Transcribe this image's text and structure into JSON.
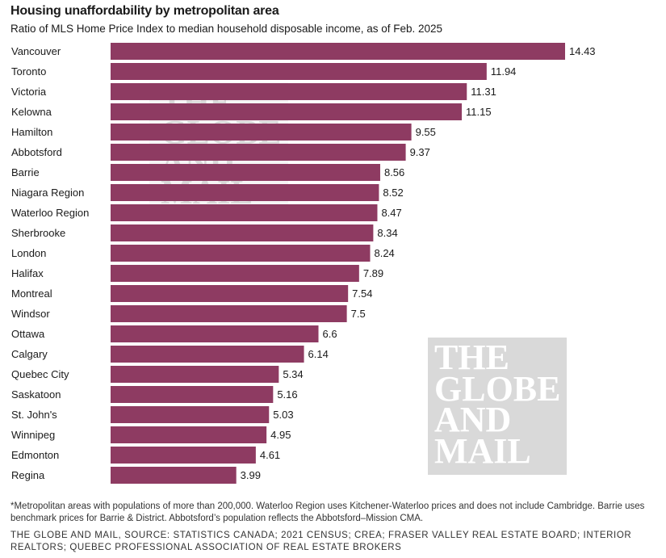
{
  "title": "Housing unaffordability by metropolitan area",
  "subtitle": "Ratio of MLS Home Price Index to median household disposable income, as of Feb. 2025",
  "watermark": {
    "lines": [
      "THE",
      "GLOBE",
      "AND",
      "MAIL"
    ]
  },
  "footnote": "*Metropolitan areas with populations of more than 200,000. Waterloo Region uses Kitchener-Waterloo prices and does not include Cambridge. Barrie uses benchmark prices for Barrie & District. Abbotsford’s population reflects the Abbotsford–Mission CMA.",
  "source": "THE GLOBE AND MAIL, SOURCE: STATISTICS CANADA; 2021 CENSUS; CREA; FRASER VALLEY REAL ESTATE BOARD; INTERIOR REALTORS; QUEBEC PROFESSIONAL ASSOCIATION OF REAL ESTATE BROKERS",
  "colors": {
    "bar": "#8e3b62",
    "text": "#1a1a1a"
  },
  "chart_data": {
    "type": "bar",
    "orientation": "horizontal",
    "categories": [
      "Vancouver",
      "Toronto",
      "Victoria",
      "Kelowna",
      "Hamilton",
      "Abbotsford",
      "Barrie",
      "Niagara Region",
      "Waterloo Region",
      "Sherbrooke",
      "London",
      "Halifax",
      "Montreal",
      "Windsor",
      "Ottawa",
      "Calgary",
      "Quebec City",
      "Saskatoon",
      "St. John's",
      "Winnipeg",
      "Edmonton",
      "Regina"
    ],
    "values": [
      14.43,
      11.94,
      11.31,
      11.15,
      9.55,
      9.37,
      8.56,
      8.52,
      8.47,
      8.34,
      8.24,
      7.89,
      7.54,
      7.5,
      6.6,
      6.14,
      5.34,
      5.16,
      5.03,
      4.95,
      4.61,
      3.99
    ],
    "value_labels": [
      "14.43",
      "11.94",
      "11.31",
      "11.15",
      "9.55",
      "9.37",
      "8.56",
      "8.52",
      "8.47",
      "8.34",
      "8.24",
      "7.89",
      "7.54",
      "7.5",
      "6.6",
      "6.14",
      "5.34",
      "5.16",
      "5.03",
      "4.95",
      "4.61",
      "3.99"
    ],
    "title": "Housing unaffordability by metropolitan area",
    "xlabel": "",
    "ylabel": "",
    "xlim": [
      0,
      14.43
    ],
    "grid": false,
    "legend": "none"
  }
}
